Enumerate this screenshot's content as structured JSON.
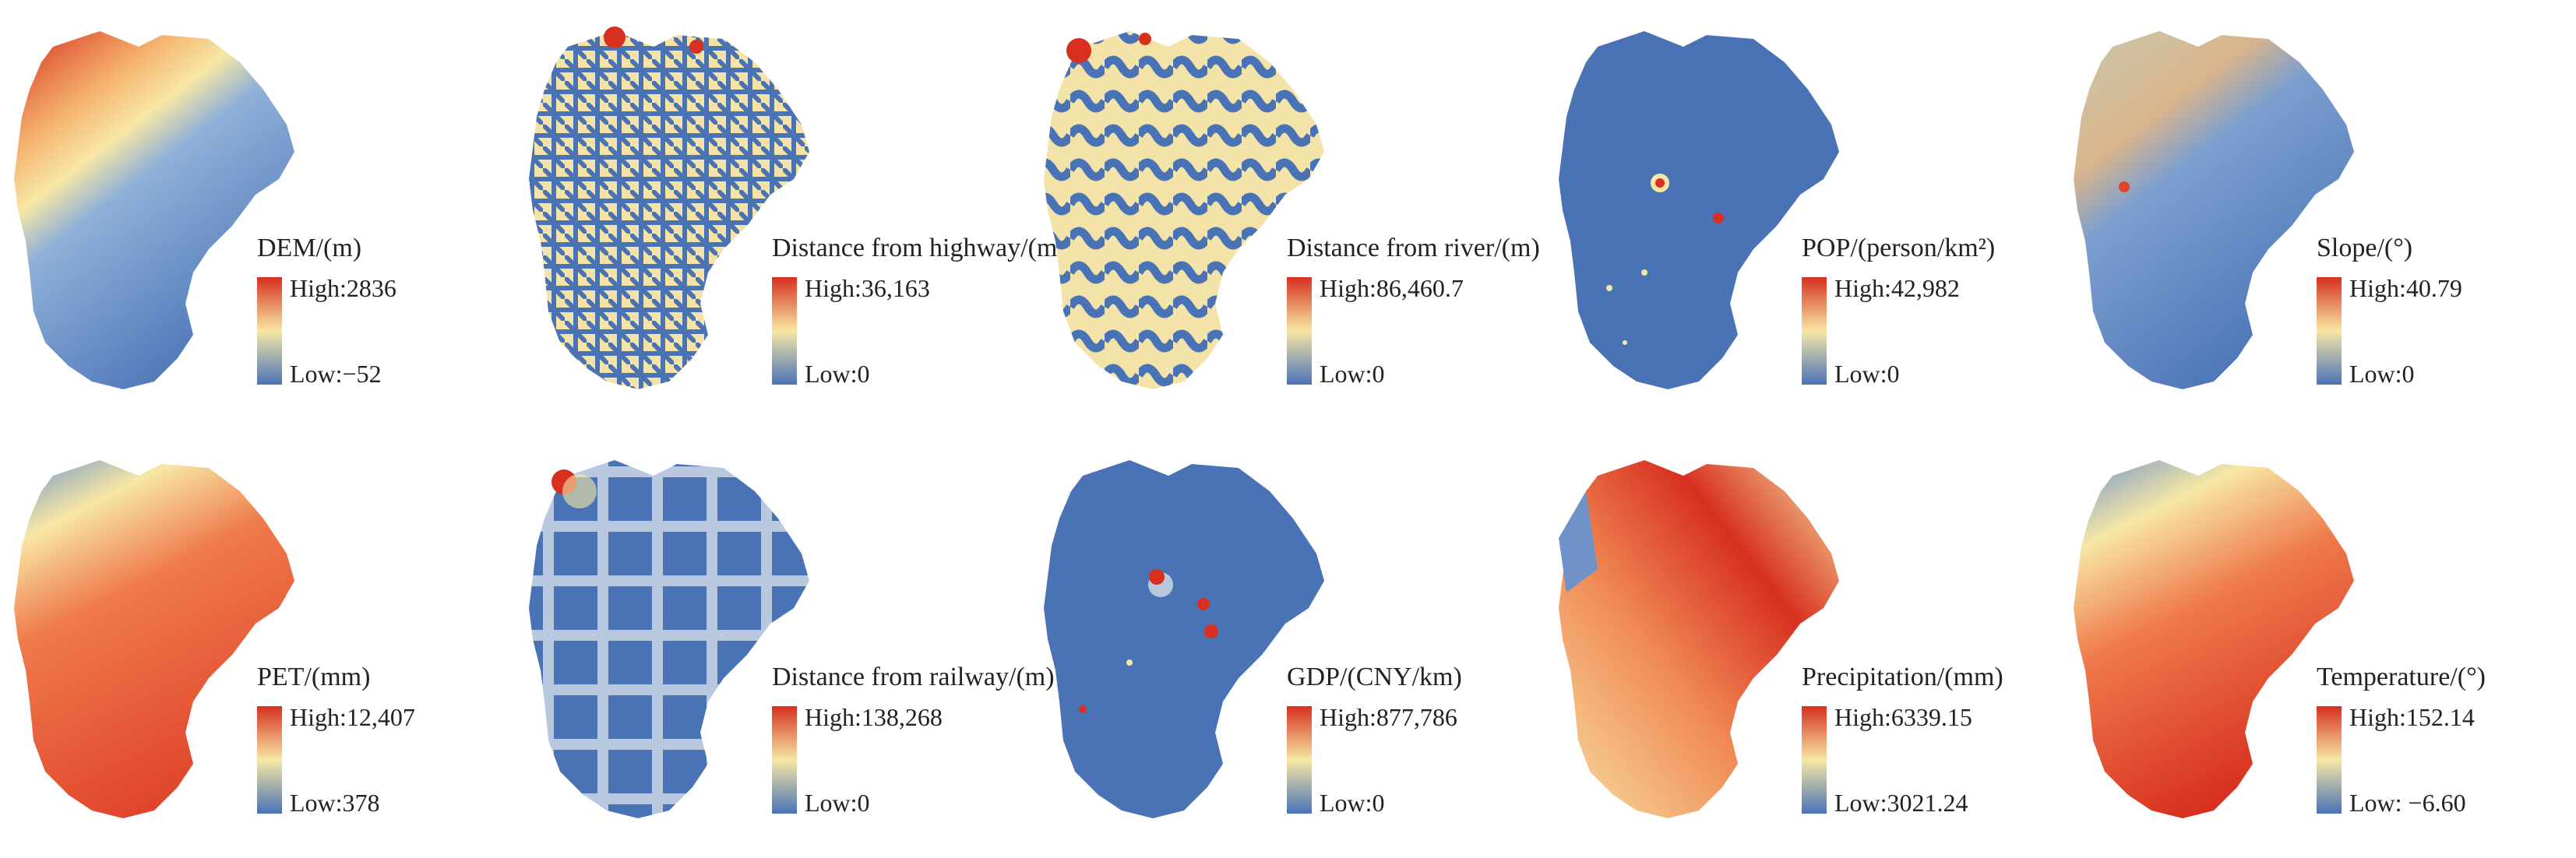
{
  "colors": {
    "high": "#d7301f",
    "mid": "#f7e7a5",
    "low": "#4a73b6"
  },
  "panels": [
    {
      "title": "DEM/(m)",
      "high": "High:2836",
      "low": "Low:−52"
    },
    {
      "title": "Distance from highway/(m)",
      "high": "High:36,163",
      "low": "Low:0"
    },
    {
      "title": "Distance from river/(m)",
      "high": "High:86,460.7",
      "low": "Low:0"
    },
    {
      "title": "POP/(person/km²)",
      "high": "High:42,982",
      "low": "Low:0"
    },
    {
      "title": "Slope/(°)",
      "high": "High:40.79",
      "low": "Low:0"
    },
    {
      "title": "PET/(mm)",
      "high": "High:12,407",
      "low": "Low:378"
    },
    {
      "title": "Distance from railway/(m)",
      "high": "High:138,268",
      "low": "Low:0"
    },
    {
      "title": "GDP/(CNY/km)",
      "high": "High:877,786",
      "low": "Low:0"
    },
    {
      "title": "Precipitation/(mm)",
      "high": "High:6339.15",
      "low": "Low:3021.24"
    },
    {
      "title": "Temperature/(°)",
      "high": "High:152.14",
      "low": "Low: −6.60"
    }
  ]
}
